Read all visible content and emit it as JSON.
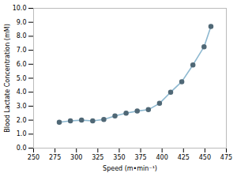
{
  "chart_data": {
    "type": "line",
    "x": [
      280,
      293,
      306,
      319,
      332,
      345,
      358,
      371,
      384,
      397,
      410,
      423,
      436,
      449,
      457
    ],
    "values": [
      1.85,
      1.95,
      2.0,
      1.95,
      2.05,
      2.3,
      2.5,
      2.65,
      2.75,
      3.2,
      4.0,
      4.75,
      5.95,
      7.25,
      8.7
    ],
    "xlabel": "Speed (m•min⁻¹)",
    "ylabel": "Blood Lactate Concentration (mM)",
    "xlim": [
      250,
      475
    ],
    "ylim": [
      0.0,
      10.0
    ],
    "xticks": [
      250,
      275,
      300,
      325,
      350,
      375,
      400,
      425,
      450,
      475
    ],
    "yticks": [
      {
        "value": 0,
        "label": "0.0"
      },
      {
        "value": 1,
        "label": "1.0"
      },
      {
        "value": 2,
        "label": "2.0"
      },
      {
        "value": 3,
        "label": "3.0"
      },
      {
        "value": 4,
        "label": "4.0"
      },
      {
        "value": 5,
        "label": "5.0"
      },
      {
        "value": 6,
        "label": "6.0"
      },
      {
        "value": 7,
        "label": "7.0"
      },
      {
        "value": 8,
        "label": "8.0"
      },
      {
        "value": 9,
        "label": "9.0"
      },
      {
        "value": 10,
        "label": "10.0"
      }
    ],
    "color": "#8db8d0",
    "marker": "o",
    "grid": false
  }
}
